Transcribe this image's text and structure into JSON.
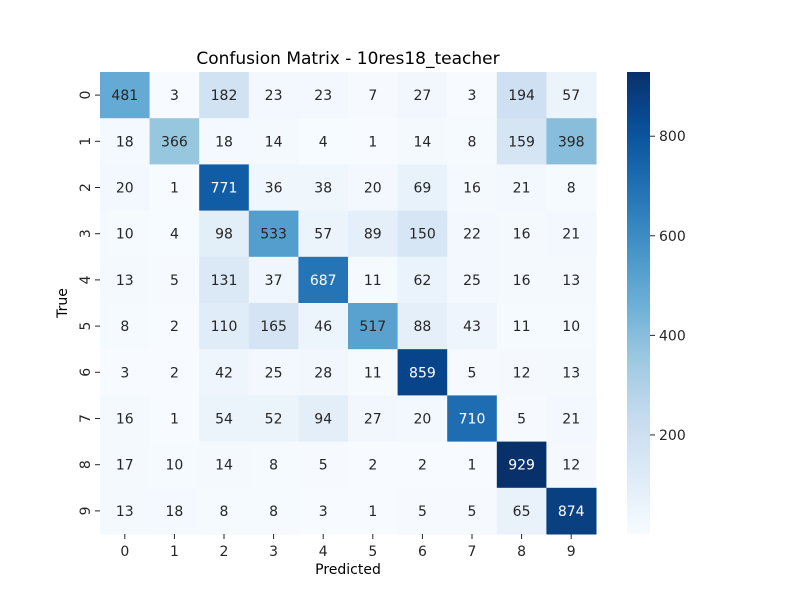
{
  "chart_data": {
    "type": "heatmap",
    "title": "Confusion Matrix - 10res18_teacher",
    "xlabel": "Predicted",
    "ylabel": "True",
    "x_categories": [
      "0",
      "1",
      "2",
      "3",
      "4",
      "5",
      "6",
      "7",
      "8",
      "9"
    ],
    "y_categories": [
      "0",
      "1",
      "2",
      "3",
      "4",
      "5",
      "6",
      "7",
      "8",
      "9"
    ],
    "values": [
      [
        481,
        3,
        182,
        23,
        23,
        7,
        27,
        3,
        194,
        57
      ],
      [
        18,
        366,
        18,
        14,
        4,
        1,
        14,
        8,
        159,
        398
      ],
      [
        20,
        1,
        771,
        36,
        38,
        20,
        69,
        16,
        21,
        8
      ],
      [
        10,
        4,
        98,
        533,
        57,
        89,
        150,
        22,
        16,
        21
      ],
      [
        13,
        5,
        131,
        37,
        687,
        11,
        62,
        25,
        16,
        13
      ],
      [
        8,
        2,
        110,
        165,
        46,
        517,
        88,
        43,
        11,
        10
      ],
      [
        3,
        2,
        42,
        25,
        28,
        11,
        859,
        5,
        12,
        13
      ],
      [
        16,
        1,
        54,
        52,
        94,
        27,
        20,
        710,
        5,
        21
      ],
      [
        17,
        10,
        14,
        8,
        5,
        2,
        2,
        1,
        929,
        12
      ],
      [
        13,
        18,
        8,
        8,
        3,
        1,
        5,
        5,
        65,
        874
      ]
    ],
    "colormap": "Blues",
    "vmin": 1,
    "vmax": 929,
    "colorbar_ticks": [
      200,
      400,
      600,
      800
    ]
  }
}
